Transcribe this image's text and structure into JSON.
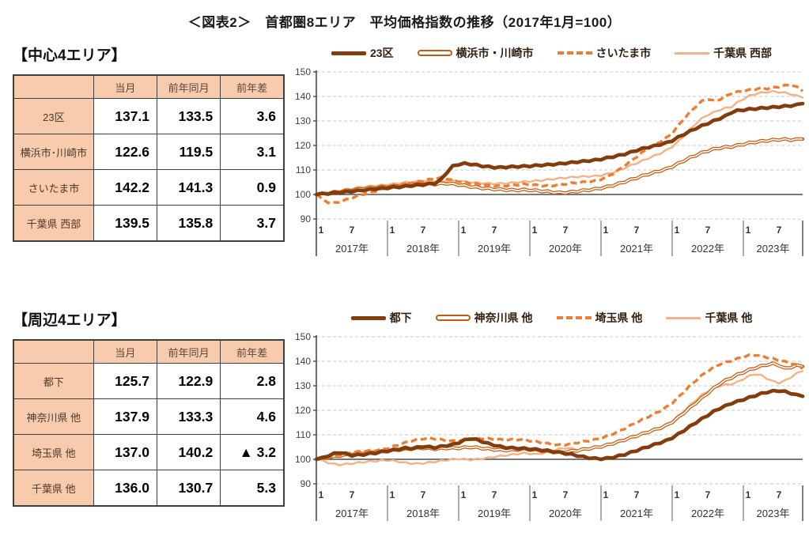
{
  "title": "＜図表2＞　首都圏8エリア　平均価格指数の推移（2017年1月=100）",
  "colors": {
    "thick_brown": "#843C0C",
    "dark_orange": "#C55A11",
    "orange": "#ED7D31",
    "light_orange": "#F4B183",
    "table_header_bg": "#F8CBAD",
    "grid_gray": "#c9c9c9",
    "axis_gray": "#555555"
  },
  "sections": [
    {
      "heading": "【中心4エリア】",
      "table": {
        "headers": [
          "",
          "当月",
          "前年同月",
          "前年差"
        ],
        "rows": [
          {
            "label": "23区",
            "current": "137.1",
            "prev_year": "133.5",
            "diff": "3.6"
          },
          {
            "label": "横浜市･川崎市",
            "current": "122.6",
            "prev_year": "119.5",
            "diff": "3.1"
          },
          {
            "label": "さいたま市",
            "current": "142.2",
            "prev_year": "141.3",
            "diff": "0.9"
          },
          {
            "label": "千葉県 西部",
            "current": "139.5",
            "prev_year": "135.8",
            "diff": "3.7"
          }
        ]
      },
      "chart_ref": 0
    },
    {
      "heading": "【周辺4エリア】",
      "table": {
        "headers": [
          "",
          "当月",
          "前年同月",
          "前年差"
        ],
        "rows": [
          {
            "label": "都下",
            "current": "125.7",
            "prev_year": "122.9",
            "diff": "2.8"
          },
          {
            "label": "神奈川県 他",
            "current": "137.9",
            "prev_year": "133.3",
            "diff": "4.6"
          },
          {
            "label": "埼玉県 他",
            "current": "137.0",
            "prev_year": "140.2",
            "diff": "▲ 3.2"
          },
          {
            "label": "千葉県 他",
            "current": "136.0",
            "prev_year": "130.7",
            "diff": "5.3"
          }
        ]
      },
      "chart_ref": 1
    }
  ],
  "chart_data": [
    {
      "type": "line",
      "title": "中心4エリア 平均価格指数（2017年1月=100）",
      "x_start": "2017-01",
      "x_end": "2023-11",
      "years": [
        "2017年",
        "2018年",
        "2019年",
        "2020年",
        "2021年",
        "2022年",
        "2023年"
      ],
      "month_ticks": [
        "1",
        "7"
      ],
      "ylim": [
        90,
        150
      ],
      "yticks": [
        90,
        100,
        110,
        120,
        130,
        140,
        150
      ],
      "baseline": 100,
      "grid": "dashed-horizontal",
      "legend_position": "top",
      "series": [
        {
          "name": "23区",
          "style": "thick-solid",
          "color": "#843C0C",
          "values": [
            100.0,
            100.2,
            100.4,
            100.6,
            100.8,
            101.0,
            101.3,
            101.5,
            101.8,
            102.0,
            102.3,
            102.5,
            102.7,
            102.9,
            103.1,
            103.3,
            103.6,
            103.8,
            104.0,
            104.3,
            104.6,
            106.0,
            109.0,
            111.5,
            112.3,
            112.6,
            112.4,
            112.0,
            111.6,
            111.3,
            111.1,
            111.0,
            111.2,
            111.3,
            111.4,
            111.5,
            111.6,
            111.8,
            112.0,
            112.1,
            112.3,
            112.5,
            112.8,
            113.0,
            113.3,
            113.5,
            113.8,
            114.0,
            114.4,
            114.9,
            115.4,
            115.9,
            116.5,
            117.2,
            118.0,
            118.7,
            119.3,
            119.8,
            120.4,
            121.0,
            122.0,
            123.3,
            124.6,
            125.8,
            127.0,
            128.0,
            129.0,
            130.0,
            131.0,
            132.0,
            133.5,
            134.2,
            134.5,
            134.8,
            135.0,
            135.2,
            135.4,
            135.6,
            135.8,
            136.0,
            136.2,
            136.5,
            137.1
          ]
        },
        {
          "name": "横浜市・川崎市",
          "style": "double",
          "color": "#C55A11",
          "values": [
            100.0,
            100.3,
            100.6,
            100.9,
            101.2,
            101.5,
            101.8,
            102.1,
            102.4,
            102.6,
            102.8,
            103.0,
            103.2,
            103.4,
            103.6,
            103.8,
            104.0,
            104.2,
            104.4,
            104.3,
            104.2,
            104.4,
            104.5,
            104.3,
            104.0,
            103.6,
            103.2,
            102.9,
            102.6,
            102.4,
            102.2,
            102.0,
            101.9,
            101.8,
            101.8,
            101.9,
            101.8,
            101.6,
            101.4,
            101.2,
            100.9,
            100.7,
            100.8,
            101.0,
            101.3,
            101.6,
            101.9,
            102.2,
            102.6,
            103.1,
            103.7,
            104.4,
            105.2,
            106.0,
            106.8,
            107.6,
            108.3,
            109.0,
            109.7,
            110.4,
            111.4,
            112.6,
            113.8,
            115.0,
            116.0,
            117.0,
            117.8,
            118.5,
            119.0,
            119.3,
            119.5,
            120.0,
            120.5,
            121.0,
            121.4,
            121.7,
            122.0,
            122.2,
            122.4,
            122.5,
            122.3,
            122.4,
            122.6
          ]
        },
        {
          "name": "さいたま市",
          "style": "dashed",
          "color": "#ED7D31",
          "values": [
            100.0,
            98.0,
            96.8,
            96.5,
            97.0,
            97.8,
            98.6,
            99.4,
            100.2,
            100.8,
            101.4,
            102.0,
            102.6,
            103.2,
            103.8,
            104.4,
            104.8,
            105.2,
            105.6,
            106.0,
            106.4,
            106.8,
            106.5,
            105.8,
            105.4,
            105.0,
            104.6,
            104.2,
            103.9,
            103.7,
            103.6,
            103.5,
            103.6,
            103.8,
            104.0,
            104.2,
            104.0,
            103.8,
            103.6,
            103.5,
            103.7,
            104.0,
            104.3,
            104.6,
            104.8,
            105.0,
            105.2,
            105.5,
            106.2,
            107.2,
            108.5,
            110.0,
            111.8,
            113.6,
            115.4,
            117.2,
            118.8,
            120.2,
            121.6,
            123.0,
            125.0,
            128.0,
            131.0,
            133.5,
            136.0,
            138.0,
            139.0,
            138.2,
            138.8,
            140.0,
            141.3,
            141.8,
            142.2,
            142.6,
            143.0,
            143.4,
            143.2,
            143.6,
            144.0,
            144.4,
            144.8,
            143.8,
            142.2
          ]
        },
        {
          "name": "千葉県 西部",
          "style": "thin-solid",
          "color": "#F4B183",
          "values": [
            100.0,
            100.4,
            100.8,
            101.2,
            101.6,
            102.0,
            102.4,
            102.8,
            103.1,
            103.4,
            103.6,
            103.8,
            104.0,
            104.3,
            104.6,
            104.9,
            105.1,
            105.3,
            105.5,
            105.6,
            105.5,
            105.4,
            105.5,
            105.6,
            105.4,
            105.2,
            105.0,
            104.8,
            104.6,
            104.5,
            104.4,
            104.5,
            104.6,
            104.8,
            105.0,
            105.2,
            105.4,
            105.6,
            105.8,
            106.0,
            106.3,
            106.6,
            106.8,
            107.0,
            107.2,
            107.3,
            107.4,
            107.5,
            107.8,
            108.3,
            109.0,
            109.8,
            110.8,
            111.8,
            112.8,
            113.8,
            114.8,
            115.8,
            116.8,
            118.0,
            119.5,
            121.5,
            124.0,
            126.5,
            129.0,
            131.0,
            132.5,
            133.5,
            134.5,
            135.2,
            135.8,
            137.5,
            139.0,
            140.2,
            141.0,
            141.5,
            141.8,
            142.0,
            141.8,
            141.5,
            141.0,
            140.2,
            139.5
          ]
        }
      ]
    },
    {
      "type": "line",
      "title": "周辺4エリア 平均価格指数（2017年1月=100）",
      "x_start": "2017-01",
      "x_end": "2023-11",
      "years": [
        "2017年",
        "2018年",
        "2019年",
        "2020年",
        "2021年",
        "2022年",
        "2023年"
      ],
      "month_ticks": [
        "1",
        "7"
      ],
      "ylim": [
        90,
        150
      ],
      "yticks": [
        90,
        100,
        110,
        120,
        130,
        140,
        150
      ],
      "baseline": 100,
      "grid": "dashed-horizontal",
      "legend_position": "top",
      "series": [
        {
          "name": "都下",
          "style": "thick-solid",
          "color": "#843C0C",
          "values": [
            100.0,
            100.5,
            101.5,
            102.3,
            102.8,
            102.2,
            101.6,
            101.8,
            102.0,
            102.3,
            102.6,
            103.0,
            103.4,
            103.8,
            104.2,
            104.6,
            104.4,
            104.8,
            105.2,
            105.0,
            104.8,
            105.2,
            105.6,
            106.0,
            106.8,
            107.8,
            108.5,
            108.0,
            107.2,
            106.4,
            105.8,
            105.2,
            104.8,
            104.6,
            104.5,
            104.4,
            104.2,
            104.0,
            103.8,
            103.5,
            103.2,
            102.8,
            102.4,
            102.0,
            101.5,
            101.0,
            100.6,
            100.3,
            100.2,
            100.4,
            100.8,
            101.4,
            102.0,
            102.8,
            103.6,
            104.4,
            105.2,
            106.0,
            106.8,
            107.6,
            108.8,
            110.2,
            111.8,
            113.4,
            115.0,
            116.5,
            118.0,
            119.5,
            120.8,
            121.8,
            122.9,
            123.6,
            124.4,
            125.2,
            126.0,
            126.8,
            127.4,
            127.8,
            128.0,
            127.6,
            127.0,
            126.2,
            125.7
          ]
        },
        {
          "name": "神奈川県 他",
          "style": "double",
          "color": "#C55A11",
          "values": [
            100.0,
            100.3,
            100.7,
            101.1,
            101.5,
            101.8,
            102.1,
            102.4,
            102.6,
            102.8,
            103.0,
            103.2,
            103.4,
            103.6,
            103.9,
            104.1,
            104.3,
            104.5,
            104.6,
            104.4,
            104.2,
            104.4,
            104.6,
            104.5,
            104.6,
            104.8,
            105.0,
            104.8,
            104.5,
            104.2,
            104.0,
            103.8,
            103.7,
            103.8,
            104.0,
            104.2,
            104.0,
            103.8,
            103.5,
            103.2,
            103.0,
            102.8,
            103.0,
            103.3,
            103.6,
            104.0,
            104.4,
            104.8,
            105.2,
            105.8,
            106.5,
            107.2,
            108.0,
            108.8,
            109.6,
            110.4,
            111.2,
            112.0,
            112.8,
            113.8,
            115.2,
            117.0,
            119.0,
            121.0,
            123.0,
            125.0,
            127.0,
            129.0,
            130.8,
            132.2,
            133.3,
            134.5,
            135.5,
            136.5,
            137.3,
            138.0,
            138.6,
            139.0,
            138.4,
            137.0,
            137.6,
            138.2,
            137.9
          ]
        },
        {
          "name": "埼玉県 他",
          "style": "dashed",
          "color": "#ED7D31",
          "values": [
            100.0,
            100.4,
            100.9,
            101.4,
            101.9,
            102.3,
            102.7,
            103.0,
            103.3,
            103.5,
            103.7,
            104.0,
            104.5,
            105.2,
            106.0,
            106.8,
            107.5,
            108.0,
            108.4,
            108.6,
            108.4,
            108.0,
            107.6,
            107.4,
            107.6,
            107.9,
            108.2,
            108.4,
            108.5,
            108.4,
            108.2,
            108.0,
            107.9,
            108.0,
            108.1,
            108.0,
            107.6,
            107.2,
            106.8,
            106.4,
            106.0,
            105.8,
            106.0,
            106.4,
            106.8,
            107.2,
            107.6,
            108.0,
            108.6,
            109.4,
            110.4,
            111.4,
            112.6,
            113.8,
            115.0,
            116.2,
            117.4,
            118.6,
            119.8,
            121.2,
            123.0,
            125.2,
            127.6,
            130.0,
            132.2,
            134.2,
            136.0,
            137.5,
            138.8,
            139.6,
            140.2,
            141.0,
            141.8,
            142.4,
            142.6,
            142.2,
            141.6,
            141.0,
            140.4,
            139.8,
            139.2,
            138.4,
            137.0
          ]
        },
        {
          "name": "千葉県 他",
          "style": "thin-solid",
          "color": "#F4B183",
          "values": [
            100.0,
            99.4,
            98.6,
            98.0,
            97.8,
            98.0,
            98.3,
            98.6,
            98.9,
            99.1,
            99.3,
            99.5,
            99.6,
            99.4,
            99.0,
            98.6,
            98.3,
            98.2,
            98.4,
            98.7,
            99.0,
            99.4,
            99.7,
            100.0,
            100.2,
            100.0,
            99.8,
            100.0,
            100.3,
            100.6,
            101.0,
            101.3,
            101.6,
            101.9,
            102.2,
            102.5,
            102.3,
            102.0,
            102.4,
            103.0,
            103.6,
            104.2,
            104.6,
            104.4,
            104.0,
            104.2,
            104.5,
            104.8,
            105.2,
            105.8,
            106.5,
            107.3,
            108.2,
            109.0,
            109.8,
            110.6,
            111.4,
            112.2,
            113.0,
            114.0,
            115.6,
            117.6,
            119.8,
            122.0,
            124.2,
            126.2,
            127.8,
            129.0,
            130.0,
            130.4,
            130.7,
            131.5,
            132.8,
            134.0,
            134.8,
            134.2,
            133.0,
            131.8,
            131.2,
            132.0,
            133.5,
            135.0,
            136.0
          ]
        }
      ]
    }
  ]
}
